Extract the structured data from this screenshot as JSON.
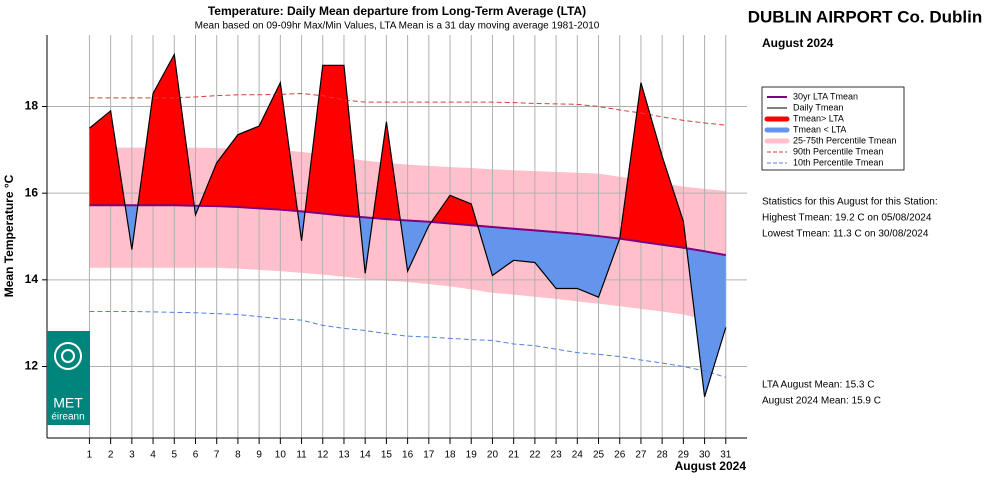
{
  "chart_data": {
    "type": "line",
    "title": "Temperature: Daily Mean departure from Long-Term Average (LTA)",
    "subtitle": "Mean based on 09-09hr Max/Min Values, LTA Mean is a 31 day moving average 1981-2010",
    "station": "DUBLIN AIRPORT Co. Dublin",
    "period": "August 2024",
    "xlabel": "August 2024",
    "ylabel": "Mean Temperature °C",
    "x": [
      1,
      2,
      3,
      4,
      5,
      6,
      7,
      8,
      9,
      10,
      11,
      12,
      13,
      14,
      15,
      16,
      17,
      18,
      19,
      20,
      21,
      22,
      23,
      24,
      25,
      26,
      27,
      28,
      29,
      30,
      31
    ],
    "xlim": [
      -1,
      32
    ],
    "xticks": [
      1,
      2,
      3,
      4,
      5,
      6,
      7,
      8,
      9,
      10,
      11,
      12,
      13,
      14,
      15,
      16,
      17,
      18,
      19,
      20,
      21,
      22,
      23,
      24,
      25,
      26,
      27,
      28,
      29,
      30,
      31
    ],
    "ylim": [
      10.35,
      19.65
    ],
    "yticks": [
      12,
      14,
      16,
      18
    ],
    "grid": true,
    "series": [
      {
        "name": "30yr LTA Tmean",
        "color": "#800080",
        "values": [
          15.72,
          15.72,
          15.72,
          15.72,
          15.72,
          15.71,
          15.7,
          15.68,
          15.65,
          15.62,
          15.58,
          15.53,
          15.48,
          15.44,
          15.4,
          15.37,
          15.34,
          15.3,
          15.26,
          15.22,
          15.18,
          15.14,
          15.1,
          15.06,
          15.01,
          14.95,
          14.88,
          14.81,
          14.74,
          14.66,
          14.57
        ]
      },
      {
        "name": "Daily Tmean",
        "color": "#000000",
        "values": [
          17.5,
          17.9,
          14.7,
          18.3,
          19.2,
          15.5,
          16.7,
          17.35,
          17.55,
          18.55,
          14.9,
          18.95,
          18.95,
          14.15,
          17.65,
          14.2,
          15.25,
          15.95,
          15.75,
          14.1,
          14.45,
          14.4,
          13.8,
          13.8,
          13.6,
          14.95,
          18.55,
          16.85,
          15.35,
          11.3,
          12.9
        ]
      },
      {
        "name": "Tmean> LTA",
        "color": "#ff0000"
      },
      {
        "name": "Tmean < LTA",
        "color": "#6495ed"
      },
      {
        "name": "25-75th Percentile Tmean",
        "color": "#ffc0cb",
        "lower": [
          14.28,
          14.28,
          14.28,
          14.28,
          14.28,
          14.28,
          14.28,
          14.26,
          14.23,
          14.2,
          14.16,
          14.12,
          14.07,
          14.02,
          13.98,
          13.95,
          13.9,
          13.85,
          13.78,
          13.7,
          13.66,
          13.61,
          13.56,
          13.5,
          13.45,
          13.39,
          13.33,
          13.27,
          13.2,
          13.08,
          12.95
        ],
        "upper": [
          17.08,
          17.05,
          17.05,
          17.05,
          17.05,
          17.05,
          17.04,
          17.03,
          17.02,
          17.0,
          16.95,
          16.9,
          16.82,
          16.75,
          16.7,
          16.66,
          16.63,
          16.6,
          16.58,
          16.55,
          16.53,
          16.51,
          16.49,
          16.47,
          16.45,
          16.38,
          16.3,
          16.22,
          16.15,
          16.1,
          16.05
        ]
      },
      {
        "name": "90th Percentile Tmean",
        "color": "#d04040",
        "values": [
          18.2,
          18.2,
          18.2,
          18.2,
          18.2,
          18.22,
          18.25,
          18.27,
          18.27,
          18.28,
          18.3,
          18.25,
          18.15,
          18.1,
          18.1,
          18.1,
          18.1,
          18.1,
          18.1,
          18.1,
          18.09,
          18.07,
          18.06,
          18.05,
          18.0,
          17.92,
          17.85,
          17.76,
          17.68,
          17.62,
          17.57
        ]
      },
      {
        "name": "10th Percentile Tmean",
        "color": "#5080e0",
        "values": [
          13.27,
          13.27,
          13.27,
          13.26,
          13.25,
          13.24,
          13.22,
          13.2,
          13.15,
          13.1,
          13.07,
          12.95,
          12.88,
          12.83,
          12.76,
          12.7,
          12.68,
          12.65,
          12.62,
          12.6,
          12.52,
          12.48,
          12.4,
          12.32,
          12.28,
          12.23,
          12.15,
          12.08,
          12.0,
          11.9,
          11.75
        ]
      }
    ],
    "stats": {
      "heading": "Statistics for this August for this Station:",
      "lines": [
        "Highest Tmean: 19.2 C on 05/08/2024",
        "Lowest Tmean: 11.3 C on 30/08/2024"
      ],
      "footer": [
        "LTA August Mean: 15.3 C",
        "August 2024 Mean: 15.9 C"
      ]
    },
    "logo": [
      "MET",
      "éireann"
    ]
  }
}
